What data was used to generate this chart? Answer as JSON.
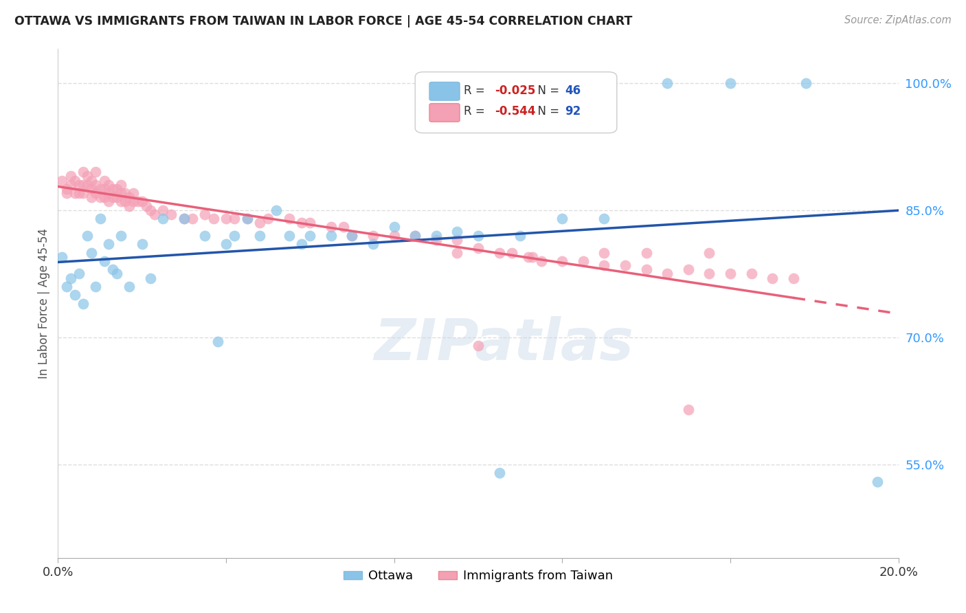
{
  "title": "OTTAWA VS IMMIGRANTS FROM TAIWAN IN LABOR FORCE | AGE 45-54 CORRELATION CHART",
  "source": "Source: ZipAtlas.com",
  "ylabel": "In Labor Force | Age 45-54",
  "xlim": [
    0.0,
    0.2
  ],
  "ylim": [
    0.44,
    1.04
  ],
  "xticks": [
    0.0,
    0.04,
    0.08,
    0.12,
    0.16,
    0.2
  ],
  "xticklabels": [
    "0.0%",
    "",
    "",
    "",
    "",
    "20.0%"
  ],
  "ytick_positions": [
    0.55,
    0.7,
    0.85,
    1.0
  ],
  "ytick_labels": [
    "55.0%",
    "70.0%",
    "85.0%",
    "100.0%"
  ],
  "ottawa_color": "#89C4E8",
  "taiwan_color": "#F4A0B5",
  "ottawa_line_color": "#2255AA",
  "taiwan_line_color": "#E8607A",
  "ottawa_R": -0.025,
  "ottawa_N": 46,
  "taiwan_R": -0.544,
  "taiwan_N": 92,
  "grid_color": "#DDDDDD",
  "watermark_text": "ZIPatlas",
  "ottawa_x": [
    0.001,
    0.002,
    0.003,
    0.004,
    0.005,
    0.006,
    0.007,
    0.008,
    0.009,
    0.01,
    0.011,
    0.012,
    0.013,
    0.014,
    0.015,
    0.017,
    0.02,
    0.022,
    0.025,
    0.03,
    0.035,
    0.038,
    0.04,
    0.042,
    0.045,
    0.048,
    0.052,
    0.055,
    0.058,
    0.06,
    0.065,
    0.07,
    0.075,
    0.08,
    0.085,
    0.09,
    0.095,
    0.1,
    0.105,
    0.11,
    0.12,
    0.13,
    0.145,
    0.16,
    0.178,
    0.195
  ],
  "ottawa_y": [
    0.795,
    0.76,
    0.77,
    0.75,
    0.775,
    0.74,
    0.82,
    0.8,
    0.76,
    0.84,
    0.79,
    0.81,
    0.78,
    0.775,
    0.82,
    0.76,
    0.81,
    0.77,
    0.84,
    0.84,
    0.82,
    0.695,
    0.81,
    0.82,
    0.84,
    0.82,
    0.85,
    0.82,
    0.81,
    0.82,
    0.82,
    0.82,
    0.81,
    0.83,
    0.82,
    0.82,
    0.825,
    0.82,
    0.54,
    0.82,
    0.84,
    0.84,
    1.0,
    1.0,
    1.0,
    0.53
  ],
  "taiwan_x": [
    0.001,
    0.002,
    0.002,
    0.003,
    0.003,
    0.004,
    0.004,
    0.005,
    0.005,
    0.006,
    0.006,
    0.006,
    0.007,
    0.007,
    0.008,
    0.008,
    0.008,
    0.009,
    0.009,
    0.009,
    0.01,
    0.01,
    0.011,
    0.011,
    0.011,
    0.012,
    0.012,
    0.012,
    0.013,
    0.013,
    0.014,
    0.014,
    0.015,
    0.015,
    0.015,
    0.016,
    0.016,
    0.017,
    0.017,
    0.018,
    0.018,
    0.019,
    0.02,
    0.021,
    0.022,
    0.023,
    0.025,
    0.027,
    0.03,
    0.032,
    0.035,
    0.037,
    0.04,
    0.042,
    0.045,
    0.048,
    0.05,
    0.055,
    0.058,
    0.06,
    0.065,
    0.068,
    0.07,
    0.075,
    0.08,
    0.085,
    0.09,
    0.095,
    0.1,
    0.105,
    0.108,
    0.112,
    0.115,
    0.12,
    0.125,
    0.13,
    0.135,
    0.14,
    0.145,
    0.15,
    0.155,
    0.16,
    0.165,
    0.17,
    0.175,
    0.15,
    0.155,
    0.113,
    0.14,
    0.1,
    0.095,
    0.13
  ],
  "taiwan_y": [
    0.885,
    0.875,
    0.87,
    0.89,
    0.88,
    0.87,
    0.885,
    0.88,
    0.87,
    0.895,
    0.88,
    0.87,
    0.89,
    0.88,
    0.885,
    0.875,
    0.865,
    0.88,
    0.87,
    0.895,
    0.875,
    0.865,
    0.885,
    0.875,
    0.865,
    0.88,
    0.87,
    0.86,
    0.875,
    0.865,
    0.875,
    0.865,
    0.88,
    0.87,
    0.86,
    0.87,
    0.86,
    0.865,
    0.855,
    0.87,
    0.86,
    0.86,
    0.86,
    0.855,
    0.85,
    0.845,
    0.85,
    0.845,
    0.84,
    0.84,
    0.845,
    0.84,
    0.84,
    0.84,
    0.84,
    0.835,
    0.84,
    0.84,
    0.835,
    0.835,
    0.83,
    0.83,
    0.82,
    0.82,
    0.82,
    0.82,
    0.815,
    0.815,
    0.805,
    0.8,
    0.8,
    0.795,
    0.79,
    0.79,
    0.79,
    0.785,
    0.785,
    0.78,
    0.775,
    0.78,
    0.775,
    0.775,
    0.775,
    0.77,
    0.77,
    0.615,
    0.8,
    0.795,
    0.8,
    0.69,
    0.8,
    0.8
  ]
}
